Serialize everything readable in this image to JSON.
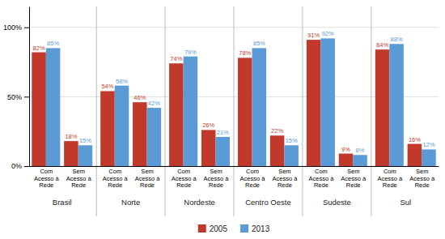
{
  "chart_data": {
    "type": "bar",
    "categories": [
      "Com\nAcesso à\nRede",
      "Sem\nAcesso à\nRede",
      "Com\nAcesso à\nRede",
      "Sem\nAcesso à\nRede",
      "Com\nAcesso à\nRede",
      "Sem\nAcesso à\nRede",
      "Com\nAcesso à\nRede",
      "Sem\nAcesso à\nRede",
      "Com\nAcesso à\nRede",
      "Sem\nAcesso à\nRede",
      "Com\nAcesso à\nRede",
      "Sem\nAcesso à\nRede"
    ],
    "groups": [
      "Brasil",
      "Norte",
      "Nordeste",
      "Centro Oeste",
      "Sudeste",
      "Sul"
    ],
    "series": [
      {
        "name": "2005",
        "color": "#C0392B",
        "values": [
          82,
          18,
          54,
          46,
          74,
          26,
          78,
          22,
          91,
          9,
          84,
          16
        ],
        "value_labels": [
          "82%",
          "18%",
          "54%",
          "46%",
          "74%",
          "26%",
          "78%",
          "22%",
          "91%",
          "9%",
          "84%",
          "16%"
        ]
      },
      {
        "name": "2013",
        "color": "#5B9BD5",
        "values": [
          85,
          15,
          58,
          42,
          79,
          21,
          85,
          15,
          92,
          8,
          88,
          12
        ],
        "value_labels": [
          "85%",
          "15%",
          "58%",
          "42%",
          "79%",
          "21%",
          "85%",
          "15%",
          "92%",
          "8%",
          "88%",
          "12%"
        ]
      }
    ],
    "ylim": [
      0,
      115
    ],
    "yticks": [
      {
        "value": 0,
        "label": "0%"
      },
      {
        "value": 50,
        "label": "50%"
      },
      {
        "value": 100,
        "label": "100%"
      }
    ],
    "grid": true,
    "legend": "bottom",
    "data_labels": true
  }
}
